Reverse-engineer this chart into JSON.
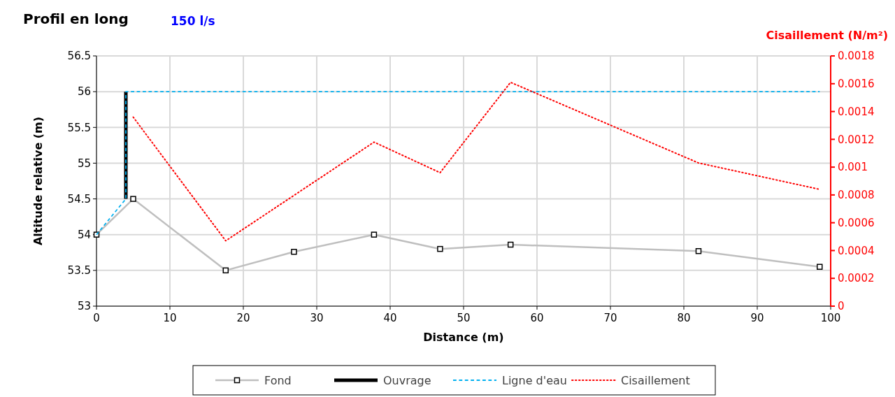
{
  "chart_data": {
    "type": "line",
    "title": "Profil en long",
    "subtitle": "150 l/s",
    "xlabel": "Distance (m)",
    "ylabel": "Altitude relative (m)",
    "y2label": "Cisaillement (N/m²)",
    "xlim": [
      0,
      100
    ],
    "xticks": [
      0,
      10,
      20,
      30,
      40,
      50,
      60,
      70,
      80,
      90,
      100
    ],
    "ylim": [
      53,
      56.5
    ],
    "yticks": [
      53,
      53.5,
      54,
      54.5,
      55,
      55.5,
      56,
      56.5
    ],
    "y2lim": [
      0,
      0.0018
    ],
    "y2ticks": [
      0,
      0.0002,
      0.0004,
      0.0006,
      0.0008,
      0.001,
      0.0012,
      0.0014,
      0.0016,
      0.0018
    ],
    "grid": true,
    "legend": "bottom",
    "series": [
      {
        "name": "Fond",
        "color": "#bfbfbf",
        "marker": "square",
        "line_style": "solid",
        "x": [
          0,
          5,
          17.6,
          26.9,
          37.8,
          46.8,
          56.4,
          82,
          98.5
        ],
        "values": [
          54,
          54.5,
          53.5,
          53.76,
          54,
          53.8,
          53.86,
          53.77,
          53.55
        ]
      },
      {
        "name": "Ouvrage",
        "color": "#000000",
        "line_style": "solid",
        "x": [
          4,
          4
        ],
        "values": [
          54.5,
          56
        ]
      },
      {
        "name": "Ligne d'eau",
        "color": "#00b0f0",
        "line_style": "dashed",
        "x": [
          0,
          4,
          4,
          98.5
        ],
        "values": [
          54,
          54.5,
          56,
          56
        ]
      },
      {
        "name": "Cisaillement",
        "color": "#ff0000",
        "line_style": "dotted",
        "axis": "y2",
        "x": [
          5,
          17.6,
          37.8,
          46.8,
          56.4,
          82,
          98.5
        ],
        "values": [
          0.00136,
          0.00047,
          0.00118,
          0.00096,
          0.00161,
          0.00103,
          0.00084
        ]
      }
    ]
  }
}
